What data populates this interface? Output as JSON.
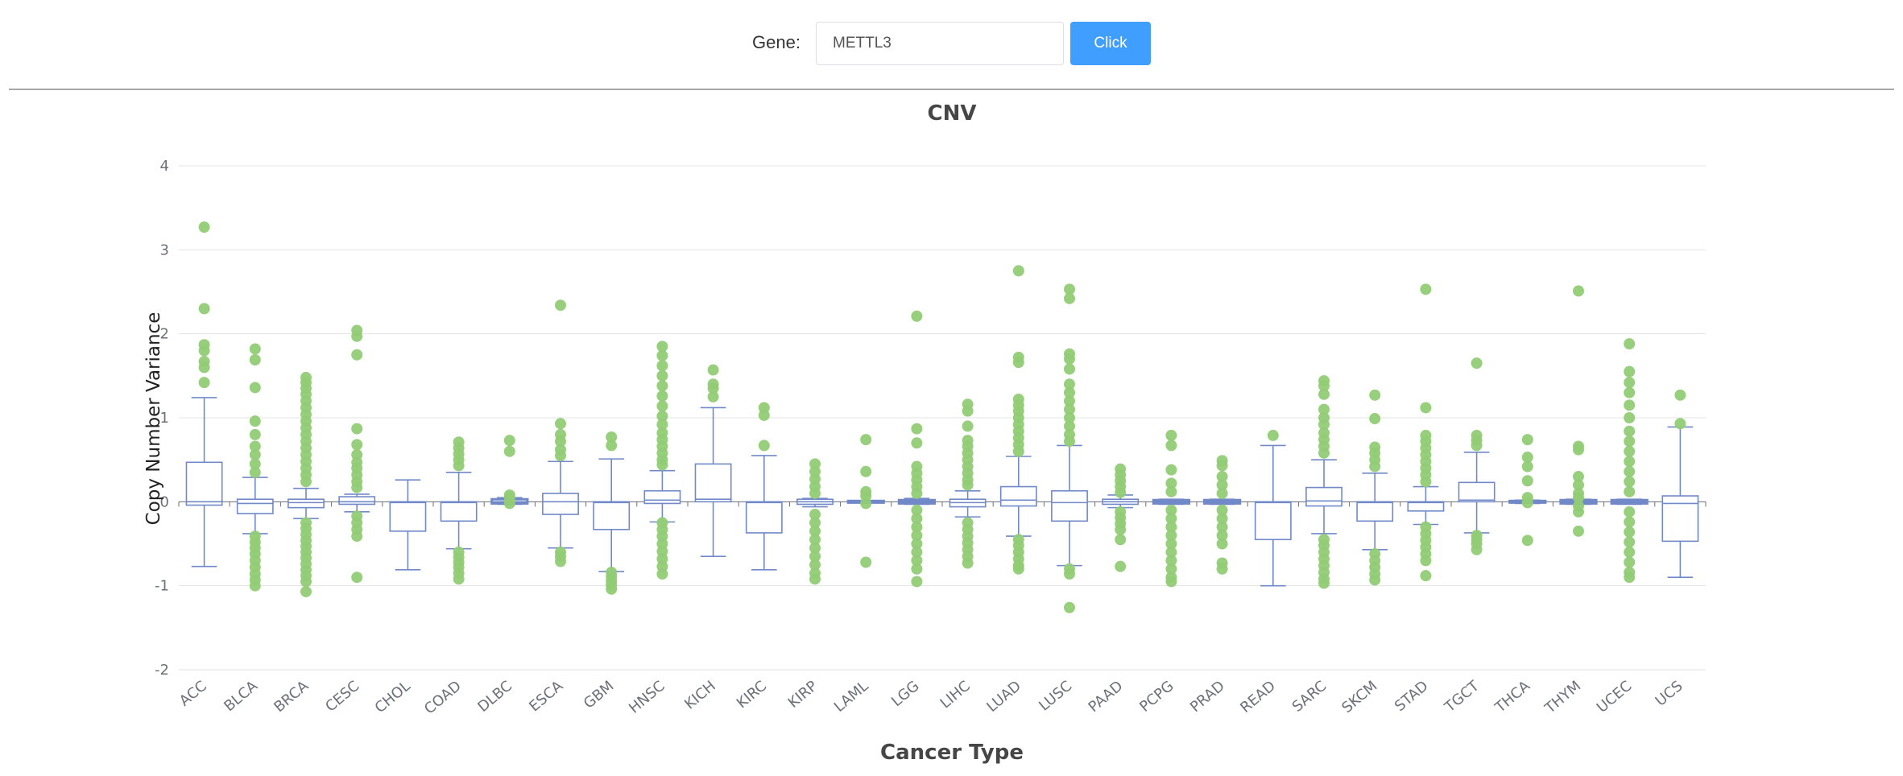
{
  "header": {
    "gene_label": "Gene:",
    "gene_value": "METTL3",
    "button_label": "Click"
  },
  "colors": {
    "box_stroke": "#7189c8",
    "outlier": "#91cc75",
    "grid": "#e3e3e3",
    "axis": "#6e7079",
    "button": "#409eff"
  },
  "chart_data": {
    "type": "boxplot",
    "title": "CNV",
    "xlabel": "Cancer Type",
    "ylabel": "Copy Number Variance",
    "ylim": [
      -2,
      4
    ],
    "yticks": [
      -2,
      -1,
      0,
      1,
      2,
      3,
      4
    ],
    "grid": true,
    "categories": [
      "ACC",
      "BLCA",
      "BRCA",
      "CESC",
      "CHOL",
      "COAD",
      "DLBC",
      "ESCA",
      "GBM",
      "HNSC",
      "KICH",
      "KIRC",
      "KIRP",
      "LAML",
      "LGG",
      "LIHC",
      "LUAD",
      "LUSC",
      "PAAD",
      "PCPG",
      "PRAD",
      "READ",
      "SARC",
      "SKCM",
      "STAD",
      "TGCT",
      "THCA",
      "THYM",
      "UCEC",
      "UCS"
    ],
    "boxes": [
      {
        "min": -0.77,
        "q1": -0.04,
        "median": 0.0,
        "q3": 0.47,
        "max": 1.24
      },
      {
        "min": -0.38,
        "q1": -0.14,
        "median": -0.02,
        "q3": 0.03,
        "max": 0.29
      },
      {
        "min": -0.2,
        "q1": -0.07,
        "median": -0.01,
        "q3": 0.03,
        "max": 0.16
      },
      {
        "min": -0.12,
        "q1": -0.03,
        "median": 0.0,
        "q3": 0.06,
        "max": 0.09
      },
      {
        "min": -0.81,
        "q1": -0.35,
        "median": -0.01,
        "q3": 0.0,
        "max": 0.26
      },
      {
        "min": -0.56,
        "q1": -0.23,
        "median": -0.01,
        "q3": 0.0,
        "max": 0.35
      },
      {
        "min": -0.03,
        "q1": -0.02,
        "median": 0.0,
        "q3": 0.03,
        "max": 0.05
      },
      {
        "min": -0.55,
        "q1": -0.15,
        "median": 0.0,
        "q3": 0.1,
        "max": 0.48
      },
      {
        "min": -0.83,
        "q1": -0.33,
        "median": -0.01,
        "q3": 0.0,
        "max": 0.51
      },
      {
        "min": -0.24,
        "q1": -0.02,
        "median": 0.02,
        "q3": 0.13,
        "max": 0.37
      },
      {
        "min": -0.65,
        "q1": 0.0,
        "median": 0.03,
        "q3": 0.45,
        "max": 1.12
      },
      {
        "min": -0.81,
        "q1": -0.37,
        "median": -0.01,
        "q3": 0.0,
        "max": 0.55
      },
      {
        "min": -0.06,
        "q1": -0.03,
        "median": 0.0,
        "q3": 0.03,
        "max": 0.04
      },
      {
        "min": -0.01,
        "q1": -0.01,
        "median": 0.0,
        "q3": 0.01,
        "max": 0.01
      },
      {
        "min": -0.03,
        "q1": -0.02,
        "median": 0.0,
        "q3": 0.02,
        "max": 0.04
      },
      {
        "min": -0.18,
        "q1": -0.06,
        "median": -0.01,
        "q3": 0.03,
        "max": 0.13
      },
      {
        "min": -0.41,
        "q1": -0.05,
        "median": 0.02,
        "q3": 0.18,
        "max": 0.54
      },
      {
        "min": -0.76,
        "q1": -0.23,
        "median": -0.01,
        "q3": 0.13,
        "max": 0.67
      },
      {
        "min": -0.07,
        "q1": -0.03,
        "median": 0.0,
        "q3": 0.03,
        "max": 0.08
      },
      {
        "min": -0.03,
        "q1": -0.02,
        "median": 0.0,
        "q3": 0.02,
        "max": 0.03
      },
      {
        "min": -0.03,
        "q1": -0.02,
        "median": 0.0,
        "q3": 0.02,
        "max": 0.03
      },
      {
        "min": -1.0,
        "q1": -0.45,
        "median": -0.01,
        "q3": 0.0,
        "max": 0.67
      },
      {
        "min": -0.38,
        "q1": -0.05,
        "median": 0.01,
        "q3": 0.17,
        "max": 0.5
      },
      {
        "min": -0.57,
        "q1": -0.23,
        "median": -0.01,
        "q3": 0.0,
        "max": 0.34
      },
      {
        "min": -0.27,
        "q1": -0.11,
        "median": -0.01,
        "q3": 0.0,
        "max": 0.18
      },
      {
        "min": -0.37,
        "q1": 0.0,
        "median": 0.02,
        "q3": 0.23,
        "max": 0.59
      },
      {
        "min": -0.02,
        "q1": -0.01,
        "median": 0.0,
        "q3": 0.01,
        "max": 0.02
      },
      {
        "min": -0.03,
        "q1": -0.02,
        "median": 0.0,
        "q3": 0.02,
        "max": 0.03
      },
      {
        "min": -0.03,
        "q1": -0.02,
        "median": 0.0,
        "q3": 0.02,
        "max": 0.03
      },
      {
        "min": -0.9,
        "q1": -0.47,
        "median": -0.02,
        "q3": 0.07,
        "max": 0.89
      }
    ],
    "outliers": [
      {
        "category": "ACC",
        "values": [
          3.27,
          2.3,
          1.87,
          1.8,
          1.67,
          1.6,
          1.42
        ]
      },
      {
        "category": "BLCA",
        "values": [
          1.82,
          1.69,
          1.36,
          0.96,
          0.8,
          0.66,
          0.56,
          0.45,
          0.35,
          -0.41,
          -0.48,
          -0.55,
          -0.62,
          -0.7,
          -0.78,
          -0.86,
          -0.93,
          -1.0
        ]
      },
      {
        "category": "BRCA",
        "values": [
          1.48,
          1.42,
          1.35,
          1.28,
          1.2,
          1.12,
          1.04,
          0.96,
          0.88,
          0.8,
          0.72,
          0.64,
          0.56,
          0.48,
          0.4,
          0.32,
          0.24,
          -0.25,
          -0.32,
          -0.39,
          -0.46,
          -0.53,
          -0.6,
          -0.67,
          -0.74,
          -0.81,
          -0.88,
          -0.95,
          -1.07
        ]
      },
      {
        "category": "CESC",
        "values": [
          2.04,
          1.97,
          1.75,
          0.87,
          0.68,
          0.56,
          0.47,
          0.4,
          0.32,
          0.24,
          0.17,
          -0.17,
          -0.25,
          -0.33,
          -0.41,
          -0.9
        ]
      },
      {
        "category": "COAD",
        "values": [
          0.71,
          0.64,
          0.57,
          0.5,
          0.43,
          -0.6,
          -0.66,
          -0.72,
          -0.78,
          -0.85,
          -0.92
        ]
      },
      {
        "category": "DLBC",
        "values": [
          0.73,
          0.6,
          0.08,
          0.05,
          -0.02
        ]
      },
      {
        "category": "ESCA",
        "values": [
          2.34,
          0.93,
          0.8,
          0.72,
          0.62,
          0.55,
          -0.6,
          -0.65,
          -0.71
        ]
      },
      {
        "category": "GBM",
        "values": [
          0.77,
          0.67,
          -0.84,
          -0.89,
          -0.94,
          -0.99,
          -1.04
        ]
      },
      {
        "category": "HNSC",
        "values": [
          1.85,
          1.74,
          1.62,
          1.5,
          1.38,
          1.26,
          1.14,
          1.02,
          0.92,
          0.82,
          0.74,
          0.66,
          0.58,
          0.5,
          0.44,
          -0.25,
          -0.33,
          -0.41,
          -0.5,
          -0.59,
          -0.68,
          -0.77,
          -0.86
        ]
      },
      {
        "category": "KICH",
        "values": [
          1.57,
          1.4,
          1.35,
          1.25
        ]
      },
      {
        "category": "KIRC",
        "values": [
          1.12,
          1.03,
          0.67
        ]
      },
      {
        "category": "KIRP",
        "values": [
          0.45,
          0.36,
          0.27,
          0.18,
          0.1,
          -0.15,
          -0.25,
          -0.35,
          -0.45,
          -0.55,
          -0.65,
          -0.75,
          -0.85,
          -0.92
        ]
      },
      {
        "category": "LAML",
        "values": [
          0.74,
          0.36,
          0.12,
          0.07,
          -0.02,
          -0.72
        ]
      },
      {
        "category": "LGG",
        "values": [
          2.21,
          0.87,
          0.7,
          0.42,
          0.34,
          0.26,
          0.18,
          0.1,
          -0.1,
          -0.2,
          -0.3,
          -0.4,
          -0.5,
          -0.6,
          -0.7,
          -0.8,
          -0.95
        ]
      },
      {
        "category": "LIHC",
        "values": [
          1.16,
          1.08,
          0.9,
          0.73,
          0.66,
          0.58,
          0.5,
          0.42,
          0.34,
          0.26,
          0.2,
          -0.25,
          -0.33,
          -0.41,
          -0.49,
          -0.57,
          -0.65,
          -0.73
        ]
      },
      {
        "category": "LUAD",
        "values": [
          2.75,
          1.72,
          1.66,
          1.22,
          1.15,
          1.08,
          1.0,
          0.92,
          0.84,
          0.76,
          0.68,
          0.6,
          -0.45,
          -0.52,
          -0.6,
          -0.68,
          -0.76,
          -0.8
        ]
      },
      {
        "category": "LUSC",
        "values": [
          2.53,
          2.42,
          1.76,
          1.7,
          1.58,
          1.4,
          1.3,
          1.2,
          1.1,
          1.0,
          0.9,
          0.8,
          0.72,
          -0.8,
          -0.86,
          -1.26
        ]
      },
      {
        "category": "PAAD",
        "values": [
          0.39,
          0.32,
          0.25,
          0.18,
          0.11,
          -0.12,
          -0.19,
          -0.26,
          -0.33,
          -0.45,
          -0.77
        ]
      },
      {
        "category": "PCPG",
        "values": [
          0.79,
          0.67,
          0.38,
          0.22,
          0.12,
          -0.1,
          -0.2,
          -0.3,
          -0.4,
          -0.5,
          -0.6,
          -0.7,
          -0.8,
          -0.9,
          -0.95
        ]
      },
      {
        "category": "PRAD",
        "values": [
          0.49,
          0.43,
          0.3,
          0.2,
          0.1,
          -0.1,
          -0.2,
          -0.3,
          -0.4,
          -0.5,
          -0.73,
          -0.8
        ]
      },
      {
        "category": "READ",
        "values": [
          0.79
        ]
      },
      {
        "category": "SARC",
        "values": [
          1.44,
          1.38,
          1.28,
          1.1,
          1.0,
          0.92,
          0.82,
          0.74,
          0.66,
          0.58,
          -0.45,
          -0.52,
          -0.6,
          -0.68,
          -0.76,
          -0.84,
          -0.92,
          -0.97
        ]
      },
      {
        "category": "SKCM",
        "values": [
          1.27,
          0.99,
          0.65,
          0.58,
          0.5,
          0.42,
          -0.62,
          -0.7,
          -0.78,
          -0.86,
          -0.93
        ]
      },
      {
        "category": "STAD",
        "values": [
          2.53,
          1.12,
          0.79,
          0.72,
          0.64,
          0.56,
          0.48,
          0.4,
          0.32,
          0.24,
          -0.3,
          -0.38,
          -0.46,
          -0.54,
          -0.62,
          -0.7,
          -0.88
        ]
      },
      {
        "category": "TGCT",
        "values": [
          1.65,
          0.79,
          0.73,
          0.67,
          -0.4,
          -0.45,
          -0.5,
          -0.57
        ]
      },
      {
        "category": "THCA",
        "values": [
          0.74,
          0.53,
          0.42,
          0.25,
          0.05,
          -0.01,
          -0.46
        ]
      },
      {
        "category": "THYM",
        "values": [
          2.51,
          0.66,
          0.62,
          0.3,
          0.2,
          0.1,
          0.05,
          -0.05,
          -0.12,
          -0.35
        ]
      },
      {
        "category": "UCEC",
        "values": [
          1.88,
          1.55,
          1.42,
          1.3,
          1.15,
          1.0,
          0.84,
          0.72,
          0.6,
          0.48,
          0.36,
          0.24,
          0.12,
          -0.12,
          -0.24,
          -0.36,
          -0.48,
          -0.6,
          -0.72,
          -0.84,
          -0.9
        ]
      },
      {
        "category": "UCS",
        "values": [
          1.27,
          0.93
        ]
      }
    ]
  }
}
